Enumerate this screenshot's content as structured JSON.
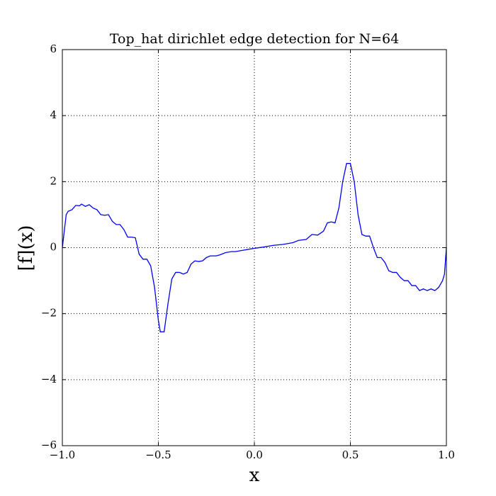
{
  "chart_data": {
    "type": "line",
    "title": "Top_hat dirichlet edge detection for N=64",
    "x_label": "x",
    "y_label": "[f](x)",
    "xlim": [
      -1.0,
      1.0
    ],
    "ylim": [
      -6,
      6
    ],
    "xticks": [
      {
        "value": -1.0,
        "label": "−1.0"
      },
      {
        "value": -0.5,
        "label": "−0.5"
      },
      {
        "value": 0.0,
        "label": "0.0"
      },
      {
        "value": 0.5,
        "label": "0.5"
      },
      {
        "value": 1.0,
        "label": "1.0"
      }
    ],
    "yticks": [
      {
        "value": -6,
        "label": "−6"
      },
      {
        "value": -4,
        "label": "−4"
      },
      {
        "value": -2,
        "label": "−2"
      },
      0,
      2,
      4,
      6
    ],
    "grid": true,
    "x": [
      -1.0,
      -0.98,
      -0.97,
      -0.95,
      -0.93,
      -0.91,
      -0.9,
      -0.88,
      -0.86,
      -0.84,
      -0.82,
      -0.8,
      -0.78,
      -0.76,
      -0.74,
      -0.72,
      -0.7,
      -0.68,
      -0.66,
      -0.64,
      -0.62,
      -0.6,
      -0.58,
      -0.56,
      -0.54,
      -0.52,
      -0.5,
      -0.49,
      -0.47,
      -0.45,
      -0.43,
      -0.41,
      -0.39,
      -0.37,
      -0.35,
      -0.33,
      -0.31,
      -0.29,
      -0.27,
      -0.25,
      -0.23,
      -0.2,
      -0.18,
      -0.15,
      -0.12,
      -0.1,
      -0.05,
      0.0,
      0.05,
      0.1,
      0.15,
      0.2,
      0.23,
      0.27,
      0.3,
      0.33,
      0.36,
      0.38,
      0.4,
      0.42,
      0.44,
      0.46,
      0.48,
      0.5,
      0.52,
      0.54,
      0.56,
      0.58,
      0.6,
      0.62,
      0.64,
      0.66,
      0.68,
      0.7,
      0.72,
      0.74,
      0.76,
      0.78,
      0.8,
      0.82,
      0.84,
      0.86,
      0.88,
      0.9,
      0.92,
      0.94,
      0.96,
      0.98,
      0.99,
      1.0
    ],
    "series": [
      {
        "color": "#0000ff",
        "values": [
          0.0,
          1.0,
          1.1,
          1.15,
          1.28,
          1.27,
          1.32,
          1.25,
          1.3,
          1.2,
          1.15,
          1.0,
          0.98,
          1.0,
          0.8,
          0.7,
          0.7,
          0.55,
          0.32,
          0.32,
          0.3,
          -0.2,
          -0.35,
          -0.35,
          -0.55,
          -1.2,
          -2.2,
          -2.55,
          -2.55,
          -1.7,
          -0.95,
          -0.75,
          -0.75,
          -0.8,
          -0.75,
          -0.5,
          -0.4,
          -0.42,
          -0.4,
          -0.3,
          -0.25,
          -0.25,
          -0.22,
          -0.15,
          -0.12,
          -0.12,
          -0.07,
          -0.02,
          0.02,
          0.07,
          0.1,
          0.15,
          0.22,
          0.25,
          0.4,
          0.38,
          0.5,
          0.75,
          0.78,
          0.75,
          1.2,
          2.0,
          2.55,
          2.55,
          2.0,
          1.0,
          0.4,
          0.35,
          0.35,
          0.0,
          -0.3,
          -0.3,
          -0.45,
          -0.7,
          -0.75,
          -0.75,
          -0.9,
          -1.0,
          -1.0,
          -1.15,
          -1.15,
          -1.3,
          -1.25,
          -1.3,
          -1.25,
          -1.3,
          -1.2,
          -1.0,
          -0.8,
          0.0
        ]
      }
    ]
  }
}
